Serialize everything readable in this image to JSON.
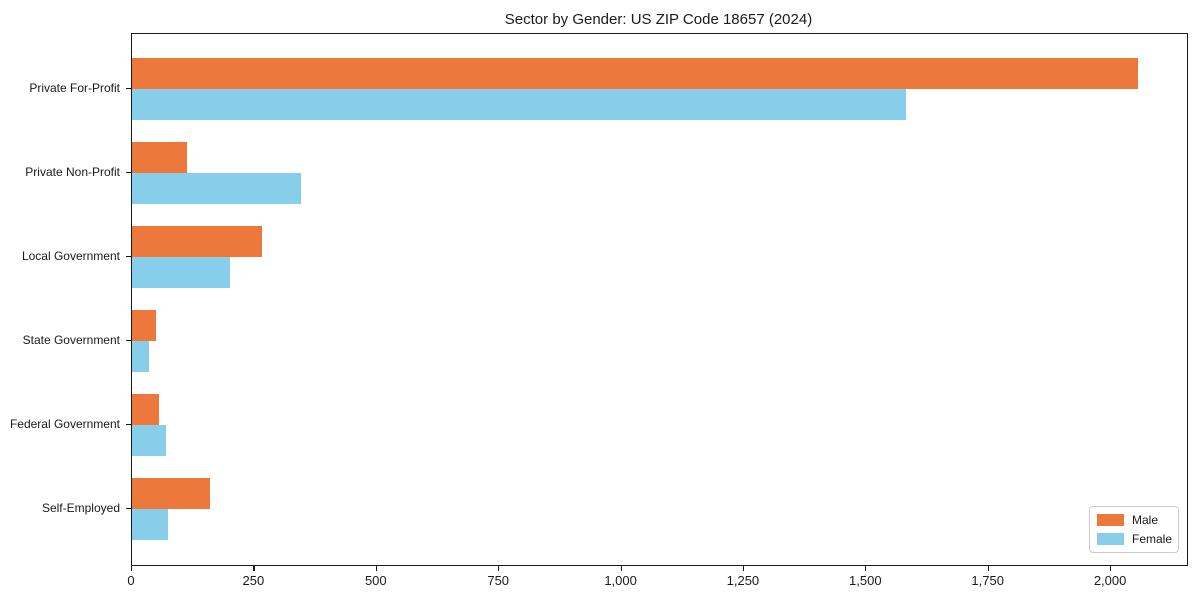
{
  "title": "Sector by Gender: US ZIP Code 18657 (2024)",
  "colors": {
    "male": "#EC793B",
    "female": "#87CEEB",
    "frame": "#1a1a1a",
    "legend_border": "#cccccc"
  },
  "chart_data": {
    "type": "bar",
    "orientation": "horizontal",
    "title": "Sector by Gender: US ZIP Code 18657 (2024)",
    "categories": [
      "Private For-Profit",
      "Private Non-Profit",
      "Local Government",
      "State Government",
      "Federal Government",
      "Self-Employed"
    ],
    "series": [
      {
        "name": "Male",
        "color": "#EC793B",
        "values": [
          2055,
          112,
          265,
          48,
          55,
          160
        ]
      },
      {
        "name": "Female",
        "color": "#87CEEB",
        "values": [
          1580,
          345,
          200,
          35,
          70,
          73
        ]
      }
    ],
    "xlabel": "",
    "ylabel": "",
    "xlim": [
      0,
      2155
    ],
    "xticks": [
      0,
      250,
      500,
      750,
      1000,
      1250,
      1500,
      1750,
      2000
    ],
    "xtick_labels": [
      "0",
      "250",
      "500",
      "750",
      "1,000",
      "1,250",
      "1,500",
      "1,750",
      "2,000"
    ],
    "grid": false,
    "legend_position": "lower right"
  },
  "legend": {
    "items": [
      {
        "label": "Male",
        "color": "#EC793B"
      },
      {
        "label": "Female",
        "color": "#87CEEB"
      }
    ]
  }
}
